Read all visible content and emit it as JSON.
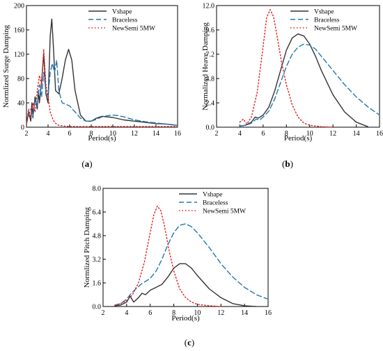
{
  "chart_data": [
    {
      "type": "line",
      "panel": "(a)",
      "panel_letter": "a",
      "xlabel": "Period(s)",
      "ylabel": "Normlized Surge Damping",
      "xlim": [
        2,
        16
      ],
      "ylim": [
        0,
        200
      ],
      "xticks": [
        "2",
        "4",
        "6",
        "8",
        "10",
        "12",
        "14",
        "16"
      ],
      "yticks": [
        "0",
        "40",
        "80",
        "120",
        "160",
        "200"
      ],
      "legend": "top-right",
      "series": [
        {
          "name": "Vshape",
          "color": "#333333",
          "dash": "solid",
          "x": [
            2,
            2.2,
            2.4,
            2.5,
            2.6,
            2.8,
            3.0,
            3.1,
            3.2,
            3.4,
            3.6,
            3.8,
            4.0,
            4.2,
            4.35,
            4.5,
            4.7,
            5.0,
            5.3,
            5.6,
            5.9,
            6.2,
            6.5,
            7.0,
            7.5,
            8.0,
            8.5,
            9,
            10,
            11,
            12,
            13,
            14,
            15,
            16
          ],
          "y": [
            5,
            25,
            10,
            40,
            20,
            50,
            30,
            60,
            40,
            75,
            120,
            55,
            40,
            150,
            178,
            130,
            60,
            55,
            80,
            110,
            128,
            110,
            60,
            20,
            10,
            10,
            15,
            18,
            16,
            12,
            10,
            8,
            6,
            5,
            3
          ]
        },
        {
          "name": "Braceless",
          "color": "#1f77b4",
          "dash": "dashed",
          "x": [
            2,
            2.2,
            2.4,
            2.6,
            2.8,
            3.0,
            3.2,
            3.4,
            3.6,
            3.8,
            4.0,
            4.2,
            4.4,
            4.6,
            4.8,
            5.0,
            5.3,
            5.6,
            6.0,
            6.5,
            7.0,
            7.5,
            8.0,
            8.5,
            9,
            9.5,
            10,
            10.5,
            11,
            12,
            13,
            14,
            15,
            16
          ],
          "y": [
            5,
            20,
            30,
            15,
            45,
            35,
            70,
            50,
            90,
            60,
            50,
            90,
            105,
            90,
            110,
            60,
            40,
            38,
            35,
            25,
            15,
            10,
            10,
            13,
            17,
            19,
            20,
            19,
            17,
            12,
            9,
            7,
            5,
            3
          ]
        },
        {
          "name": "NewSemi 5MW",
          "color": "#e41a1c",
          "dash": "dotted",
          "x": [
            2,
            2.2,
            2.4,
            2.6,
            2.8,
            3.0,
            3.2,
            3.4,
            3.6,
            3.8,
            4.0,
            4.2,
            4.4,
            4.6,
            4.8,
            5.0,
            5.5,
            6,
            7,
            8,
            9,
            10,
            12,
            14,
            16
          ],
          "y": [
            5,
            30,
            15,
            40,
            25,
            60,
            85,
            70,
            128,
            70,
            50,
            25,
            15,
            8,
            5,
            3,
            2,
            1,
            1,
            1,
            1,
            1,
            1,
            1,
            1
          ]
        }
      ]
    },
    {
      "type": "line",
      "panel": "(b)",
      "panel_letter": "b",
      "xlabel": "Period(s)",
      "ylabel": "Normalized Heave Damping",
      "xlim": [
        2,
        16
      ],
      "ylim": [
        0,
        12
      ],
      "xticks": [
        "2",
        "4",
        "6",
        "8",
        "10",
        "12",
        "14",
        "16"
      ],
      "yticks": [
        "0.0",
        "2.4",
        "4.8",
        "7.2",
        "9.6",
        "12.0"
      ],
      "legend": "top-right",
      "series": [
        {
          "name": "Vshape",
          "color": "#333333",
          "dash": "solid",
          "x": [
            4,
            4.5,
            5.0,
            5.3,
            5.6,
            6.0,
            6.5,
            7.0,
            7.5,
            8.0,
            8.5,
            9.0,
            9.5,
            10.0,
            10.5,
            11,
            12,
            13,
            14,
            15
          ],
          "y": [
            0.1,
            0.2,
            0.5,
            1.0,
            0.9,
            1.2,
            2.0,
            3.6,
            5.6,
            7.6,
            8.8,
            9.2,
            9.0,
            8.2,
            7.0,
            5.6,
            3.2,
            1.5,
            0.5,
            0.05
          ]
        },
        {
          "name": "Braceless",
          "color": "#1f77b4",
          "dash": "dashed",
          "x": [
            4,
            4.5,
            5.0,
            5.4,
            5.7,
            6.0,
            6.5,
            7.0,
            7.5,
            8.0,
            8.5,
            9.0,
            9.5,
            10.0,
            10.5,
            11,
            12,
            13,
            14,
            15,
            16
          ],
          "y": [
            0.1,
            0.2,
            0.4,
            0.8,
            0.7,
            1.0,
            1.6,
            2.8,
            4.4,
            6.0,
            7.2,
            7.9,
            8.2,
            8.1,
            7.7,
            7.0,
            5.6,
            4.2,
            3.0,
            2.0,
            1.2
          ]
        },
        {
          "name": "NewSemi 5MW",
          "color": "#e41a1c",
          "dash": "dotted",
          "x": [
            4,
            4.3,
            4.6,
            5.0,
            5.5,
            6.0,
            6.3,
            6.6,
            6.9,
            7.2,
            7.6,
            8.0,
            8.5,
            9.0,
            9.5,
            10,
            11,
            12
          ],
          "y": [
            0.5,
            0.8,
            0.3,
            1.0,
            3.5,
            8.0,
            10.8,
            11.6,
            10.9,
            9.0,
            6.3,
            4.2,
            2.2,
            1.0,
            0.4,
            0.2,
            0.05,
            0
          ]
        }
      ]
    },
    {
      "type": "line",
      "panel": "(c)",
      "panel_letter": "c",
      "xlabel": "Period(s)",
      "ylabel": "Normlized Pitch Damping",
      "xlim": [
        2,
        16
      ],
      "ylim": [
        0,
        8
      ],
      "xticks": [
        "2",
        "4",
        "6",
        "8",
        "10",
        "12",
        "14",
        "16"
      ],
      "yticks": [
        "0.0",
        "1.6",
        "3.2",
        "4.8",
        "6.4",
        "8.0"
      ],
      "legend": "top-right",
      "series": [
        {
          "name": "Vshape",
          "color": "#333333",
          "dash": "solid",
          "x": [
            3,
            3.5,
            4.0,
            4.3,
            4.6,
            5.0,
            5.3,
            5.6,
            6.0,
            6.5,
            7.0,
            7.5,
            8.0,
            8.5,
            9.0,
            9.5,
            10,
            11,
            12,
            13,
            14,
            15
          ],
          "y": [
            0.05,
            0.1,
            0.3,
            0.7,
            0.3,
            0.6,
            0.9,
            0.8,
            1.1,
            1.3,
            1.5,
            2.0,
            2.6,
            2.9,
            2.9,
            2.6,
            2.1,
            1.2,
            0.6,
            0.2,
            0.05,
            0
          ]
        },
        {
          "name": "Braceless",
          "color": "#1f77b4",
          "dash": "dashed",
          "x": [
            3,
            3.5,
            4.0,
            4.4,
            4.8,
            5.2,
            5.6,
            6.0,
            6.5,
            7.0,
            7.5,
            8.0,
            8.5,
            9.0,
            9.5,
            10,
            11,
            12,
            13,
            14,
            15,
            16
          ],
          "y": [
            0.1,
            0.2,
            0.5,
            0.9,
            1.2,
            1.5,
            1.7,
            1.9,
            2.4,
            3.2,
            4.2,
            5.0,
            5.5,
            5.6,
            5.4,
            5.0,
            4.0,
            2.9,
            2.0,
            1.3,
            0.8,
            0.5
          ]
        },
        {
          "name": "NewSemi 5MW",
          "color": "#e41a1c",
          "dash": "dotted",
          "x": [
            3,
            3.5,
            4.0,
            4.5,
            5.0,
            5.5,
            6.0,
            6.3,
            6.6,
            6.9,
            7.2,
            7.6,
            8.0,
            8.5,
            9.0,
            9.5,
            10,
            11,
            12
          ],
          "y": [
            0.05,
            0.2,
            0.4,
            0.8,
            1.6,
            3.0,
            5.0,
            6.2,
            6.8,
            6.5,
            5.5,
            3.8,
            2.4,
            1.2,
            0.6,
            0.3,
            0.15,
            0.05,
            0
          ]
        }
      ]
    }
  ]
}
